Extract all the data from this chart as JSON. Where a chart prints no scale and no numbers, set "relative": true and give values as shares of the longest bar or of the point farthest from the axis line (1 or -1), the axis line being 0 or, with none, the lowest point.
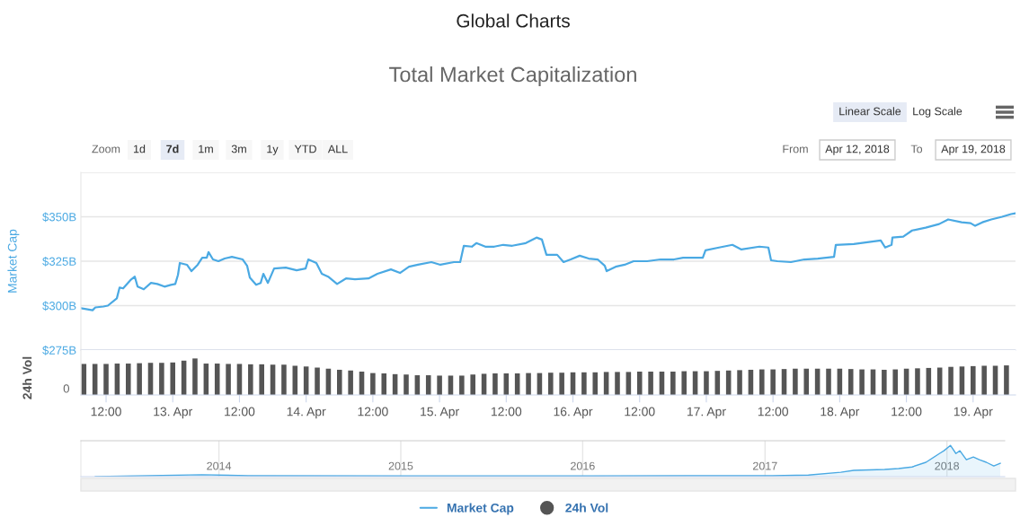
{
  "chart_data": [
    {
      "type": "line",
      "title": "Global Charts",
      "subtitle": "Total Market Capitalization",
      "ylabel": "Market Cap",
      "annotations": [
        "Zoom",
        "1d",
        "7d",
        "1m",
        "3m",
        "1y",
        "YTD",
        "ALL",
        "Linear Scale",
        "Log Scale",
        "From",
        "Apr 12, 2018",
        "To",
        "Apr 19, 2018"
      ],
      "xlim": [
        "2018-04-12T07:28",
        "2018-04-19T07:38"
      ],
      "ylim": [
        275,
        375
      ],
      "yticks": [
        {
          "value": 275,
          "label": "$275B"
        },
        {
          "value": 300,
          "label": "$300B"
        },
        {
          "value": 325,
          "label": "$325B"
        },
        {
          "value": 350,
          "label": "$350B"
        },
        {
          "value": 375,
          "label": null
        }
      ],
      "grid": "y",
      "tick_labels": "y",
      "legend": "bottom",
      "series": [
        {
          "name": "Market Cap",
          "color": "#4aa9e3",
          "x": [
            "2018-04-12T07:28",
            "2018-04-12T08:26",
            "2018-04-12T09:34",
            "2018-04-12T10:04",
            "2018-04-12T11:31",
            "2018-04-12T12:19",
            "2018-04-12T13:56",
            "2018-04-12T14:26",
            "2018-04-12T15:04",
            "2018-04-12T16:22",
            "2018-04-12T17:10",
            "2018-04-12T17:40",
            "2018-04-12T18:47",
            "2018-04-12T20:05",
            "2018-04-12T21:13",
            "2018-04-12T22:31",
            "2018-04-12T23:39",
            "2018-04-13T00:27",
            "2018-04-13T00:56",
            "2018-04-13T01:16",
            "2018-04-13T02:33",
            "2018-04-13T03:22",
            "2018-04-13T04:29",
            "2018-04-13T05:18",
            "2018-04-13T06:07",
            "2018-04-13T06:26",
            "2018-04-13T07:14",
            "2018-04-13T08:13",
            "2018-04-13T09:20",
            "2018-04-13T10:38",
            "2018-04-13T12:35",
            "2018-04-13T13:23",
            "2018-04-13T13:52",
            "2018-04-13T15:00",
            "2018-04-13T15:49",
            "2018-04-13T16:18",
            "2018-04-13T17:07",
            "2018-04-13T18:14",
            "2018-04-13T20:20",
            "2018-04-13T22:17",
            "2018-04-13T23:54",
            "2018-04-14T00:23",
            "2018-04-14T01:50",
            "2018-04-14T02:49",
            "2018-04-14T03:57",
            "2018-04-14T05:34",
            "2018-04-14T07:10",
            "2018-04-14T08:47",
            "2018-04-14T11:13",
            "2018-04-14T12:50",
            "2018-04-14T15:15",
            "2018-04-14T16:53",
            "2018-04-14T18:30",
            "2018-04-14T20:07",
            "2018-04-14T22:32",
            "2018-04-15T00:09",
            "2018-04-15T02:35",
            "2018-04-15T03:43",
            "2018-04-15T04:22",
            "2018-04-15T05:49",
            "2018-04-15T06:37",
            "2018-04-15T08:14",
            "2018-04-15T09:51",
            "2018-04-15T11:28",
            "2018-04-15T13:05",
            "2018-04-15T15:31",
            "2018-04-15T17:27",
            "2018-04-15T18:25",
            "2018-04-15T19:14",
            "2018-04-15T21:10",
            "2018-04-15T22:19",
            "2018-04-15T23:36",
            "2018-04-16T01:13",
            "2018-04-16T02:50",
            "2018-04-16T04:27",
            "2018-04-16T05:44",
            "2018-04-16T06:04",
            "2018-04-16T07:41",
            "2018-04-16T09:18",
            "2018-04-16T10:55",
            "2018-04-16T13:20",
            "2018-04-16T15:46",
            "2018-04-16T18:11",
            "2018-04-16T19:49",
            "2018-04-16T23:22",
            "2018-04-16T23:51",
            "2018-04-17T02:17",
            "2018-04-17T04:42",
            "2018-04-17T06:19",
            "2018-04-17T09:33",
            "2018-04-17T11:10",
            "2018-04-17T11:39",
            "2018-04-17T12:47",
            "2018-04-17T15:13",
            "2018-04-17T17:38",
            "2018-04-17T20:04",
            "2018-04-17T22:59",
            "2018-04-17T23:18",
            "2018-04-18T02:32",
            "2018-04-18T04:57",
            "2018-04-18T07:23",
            "2018-04-18T08:11",
            "2018-04-18T09:20",
            "2018-04-18T09:29",
            "2018-04-18T11:26",
            "2018-04-18T13:02",
            "2018-04-18T15:28",
            "2018-04-18T17:53",
            "2018-04-18T19:31",
            "2018-04-18T21:56",
            "2018-04-18T23:33",
            "2018-04-19T00:22",
            "2018-04-19T01:40",
            "2018-04-19T03:16",
            "2018-04-19T05:13",
            "2018-04-19T06:50",
            "2018-04-19T07:38"
          ],
          "values": [
            298.5,
            298.0,
            297.4,
            299.0,
            299.5,
            300.0,
            304.1,
            310.2,
            309.7,
            314.3,
            316.3,
            310.7,
            309.2,
            312.8,
            312.2,
            310.7,
            311.7,
            312.2,
            317.3,
            324.0,
            323.0,
            319.4,
            323.0,
            327.0,
            327.0,
            330.1,
            326.0,
            325.0,
            326.5,
            327.5,
            326.0,
            322.4,
            315.8,
            311.7,
            312.8,
            317.9,
            312.8,
            320.9,
            321.4,
            319.9,
            320.9,
            326.0,
            324.0,
            317.9,
            316.3,
            312.2,
            315.3,
            314.8,
            315.3,
            317.9,
            320.4,
            318.4,
            321.9,
            323.0,
            324.5,
            323.0,
            324.5,
            324.5,
            333.7,
            333.2,
            335.2,
            333.2,
            333.2,
            334.2,
            333.7,
            335.2,
            338.3,
            337.2,
            328.6,
            328.6,
            324.5,
            326.0,
            328.1,
            326.5,
            326.0,
            322.4,
            319.4,
            321.9,
            323.0,
            325.0,
            325.0,
            326.0,
            326.0,
            327.0,
            327.0,
            331.1,
            332.7,
            334.2,
            331.6,
            333.2,
            332.7,
            325.5,
            325.0,
            324.5,
            326.0,
            326.5,
            327.5,
            334.2,
            334.7,
            335.7,
            336.7,
            332.7,
            334.2,
            338.3,
            338.8,
            342.3,
            343.9,
            345.9,
            348.5,
            346.9,
            346.4,
            344.9,
            346.9,
            348.5,
            350.0,
            351.5,
            352.0
          ]
        }
      ]
    },
    {
      "type": "bar",
      "ylabel": "24h Vol",
      "relative": true,
      "annotations": [
        "0"
      ],
      "legend": "bottom",
      "tick_labels": "x",
      "xlim": [
        "2018-04-12T07:28",
        "2018-04-19T07:38"
      ],
      "xticks": [
        {
          "value": "2018-04-12T12:00",
          "label": "12:00"
        },
        {
          "value": "2018-04-13",
          "label": "13. Apr"
        },
        {
          "value": "2018-04-13T12:00",
          "label": "12:00"
        },
        {
          "value": "2018-04-14",
          "label": "14. Apr"
        },
        {
          "value": "2018-04-14T12:00",
          "label": "12:00"
        },
        {
          "value": "2018-04-15",
          "label": "15. Apr"
        },
        {
          "value": "2018-04-15T12:00",
          "label": "12:00"
        },
        {
          "value": "2018-04-16",
          "label": "16. Apr"
        },
        {
          "value": "2018-04-16T12:00",
          "label": "12:00"
        },
        {
          "value": "2018-04-17",
          "label": "17. Apr"
        },
        {
          "value": "2018-04-17T12:00",
          "label": "12:00"
        },
        {
          "value": "2018-04-18",
          "label": "18. Apr"
        },
        {
          "value": "2018-04-18T12:00",
          "label": "12:00"
        },
        {
          "value": "2018-04-19",
          "label": "19. Apr"
        }
      ],
      "x": [
        "2018-04-12T08:00",
        "2018-04-12T10:00",
        "2018-04-12T12:00",
        "2018-04-12T14:00",
        "2018-04-12T16:00",
        "2018-04-12T18:00",
        "2018-04-12T20:00",
        "2018-04-12T22:00",
        "2018-04-13T00:00",
        "2018-04-13T02:00",
        "2018-04-13T04:00",
        "2018-04-13T06:00",
        "2018-04-13T08:00",
        "2018-04-13T10:00",
        "2018-04-13T12:00",
        "2018-04-13T14:00",
        "2018-04-13T16:00",
        "2018-04-13T18:00",
        "2018-04-13T20:00",
        "2018-04-13T22:00",
        "2018-04-14T00:00",
        "2018-04-14T02:00",
        "2018-04-14T04:00",
        "2018-04-14T06:00",
        "2018-04-14T08:00",
        "2018-04-14T10:00",
        "2018-04-14T12:00",
        "2018-04-14T14:00",
        "2018-04-14T16:00",
        "2018-04-14T18:00",
        "2018-04-14T20:00",
        "2018-04-14T22:00",
        "2018-04-15T00:00",
        "2018-04-15T02:00",
        "2018-04-15T04:00",
        "2018-04-15T06:00",
        "2018-04-15T08:00",
        "2018-04-15T10:00",
        "2018-04-15T12:00",
        "2018-04-15T14:00",
        "2018-04-15T16:00",
        "2018-04-15T18:00",
        "2018-04-15T20:00",
        "2018-04-15T22:00",
        "2018-04-16T00:00",
        "2018-04-16T02:00",
        "2018-04-16T04:00",
        "2018-04-16T06:00",
        "2018-04-16T08:00",
        "2018-04-16T10:00",
        "2018-04-16T12:00",
        "2018-04-16T14:00",
        "2018-04-16T16:00",
        "2018-04-16T18:00",
        "2018-04-16T20:00",
        "2018-04-16T22:00",
        "2018-04-17T00:00",
        "2018-04-17T02:00",
        "2018-04-17T04:00",
        "2018-04-17T06:00",
        "2018-04-17T08:00",
        "2018-04-17T10:00",
        "2018-04-17T12:00",
        "2018-04-17T14:00",
        "2018-04-17T16:00",
        "2018-04-17T18:00",
        "2018-04-17T20:00",
        "2018-04-17T22:00",
        "2018-04-18T00:00",
        "2018-04-18T02:00",
        "2018-04-18T04:00",
        "2018-04-18T06:00",
        "2018-04-18T08:00",
        "2018-04-18T10:00",
        "2018-04-18T12:00",
        "2018-04-18T14:00",
        "2018-04-18T16:00",
        "2018-04-18T18:00",
        "2018-04-18T20:00",
        "2018-04-18T22:00",
        "2018-04-19T00:00",
        "2018-04-19T02:00",
        "2018-04-19T04:00",
        "2018-04-19T06:00"
      ],
      "series": [
        {
          "name": "24h Vol",
          "color": "#555555",
          "values": [
            0.85,
            0.85,
            0.85,
            0.86,
            0.86,
            0.87,
            0.88,
            0.88,
            0.89,
            0.94,
            1,
            0.86,
            0.86,
            0.85,
            0.85,
            0.84,
            0.84,
            0.83,
            0.83,
            0.8,
            0.78,
            0.75,
            0.72,
            0.69,
            0.67,
            0.64,
            0.6,
            0.59,
            0.57,
            0.56,
            0.54,
            0.54,
            0.53,
            0.53,
            0.53,
            0.56,
            0.58,
            0.59,
            0.59,
            0.59,
            0.6,
            0.6,
            0.61,
            0.61,
            0.62,
            0.62,
            0.62,
            0.63,
            0.63,
            0.63,
            0.64,
            0.64,
            0.64,
            0.64,
            0.65,
            0.65,
            0.65,
            0.66,
            0.67,
            0.68,
            0.69,
            0.7,
            0.7,
            0.71,
            0.72,
            0.72,
            0.72,
            0.72,
            0.72,
            0.71,
            0.7,
            0.7,
            0.69,
            0.7,
            0.72,
            0.73,
            0.74,
            0.75,
            0.77,
            0.78,
            0.79,
            0.8,
            0.8,
            0.81
          ]
        }
      ]
    },
    {
      "type": "area",
      "relative": true,
      "grid": "x",
      "tick_labels": "x",
      "xlim": [
        "2013-03-30",
        "2018-04-27"
      ],
      "xticks": [
        {
          "value": "2014-01-01",
          "label": "2014"
        },
        {
          "value": "2015-01-01",
          "label": "2015"
        },
        {
          "value": "2016-01-01",
          "label": "2016"
        },
        {
          "value": "2017-01-01",
          "label": "2017"
        },
        {
          "value": "2018-01-01",
          "label": "2018"
        }
      ],
      "series": [
        {
          "color": "#4aa9e3",
          "x": [
            "2013-04-28",
            "2013-11-28",
            "2014-03-01",
            "2015-01-15",
            "2016-01-15",
            "2016-09-01",
            "2017-01-15",
            "2017-03-29",
            "2017-06-02",
            "2017-06-28",
            "2017-08-29",
            "2017-09-26",
            "2017-10-23",
            "2017-11-20",
            "2017-12-17",
            "2017-12-26",
            "2018-01-08",
            "2018-01-19",
            "2018-01-27",
            "2018-02-09",
            "2018-02-23",
            "2018-03-07",
            "2018-03-21",
            "2018-04-05",
            "2018-04-18"
          ],
          "values": [
            0,
            0.06,
            0.03,
            0.02,
            0.02,
            0.03,
            0.03,
            0.05,
            0.14,
            0.2,
            0.23,
            0.26,
            0.31,
            0.46,
            0.74,
            0.83,
            1,
            0.74,
            0.83,
            0.54,
            0.63,
            0.54,
            0.46,
            0.34,
            0.43
          ]
        }
      ]
    }
  ]
}
